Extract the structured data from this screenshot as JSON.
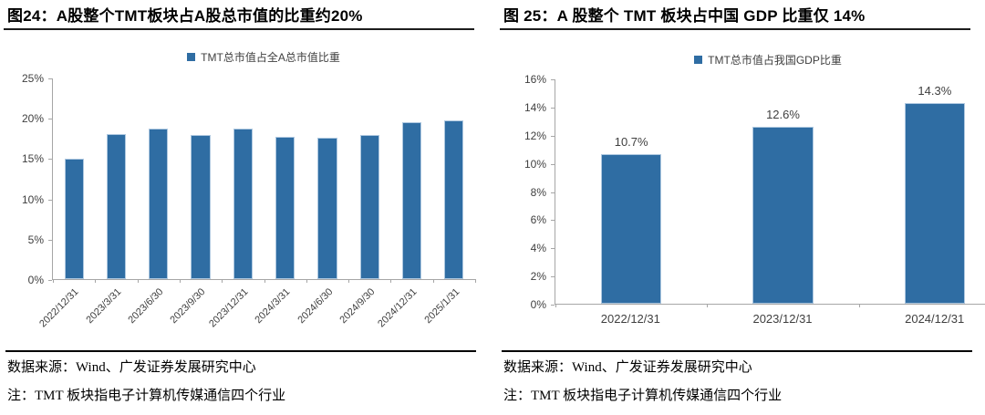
{
  "page": {
    "background": "#ffffff",
    "accent_blue": "#2F6DA3"
  },
  "panels": {
    "left": {
      "source": "数据来源：Wind、广发证券发展研究中心",
      "note": "注：TMT 板块指电子计算机传媒通信四个行业"
    },
    "right": {
      "source": "数据来源：Wind、广发证券发展研究中心",
      "note": "注：TMT 板块指电子计算机传媒通信四个行业"
    }
  },
  "chart_data": [
    {
      "type": "bar",
      "title": "图24：A股整个TMT板块占A股总市值的比重约20%",
      "legend": [
        "TMT总市值占全A总市值比重"
      ],
      "legend_position": "top",
      "categories": [
        "2022/12/31",
        "2023/3/31",
        "2023/6/30",
        "2023/9/30",
        "2023/12/31",
        "2024/3/31",
        "2024/6/30",
        "2024/9/30",
        "2024/12/31",
        "2025/1/31"
      ],
      "values": [
        15.0,
        18.1,
        18.8,
        18.0,
        18.7,
        17.7,
        17.6,
        17.9,
        19.6,
        19.8
      ],
      "unit": "%",
      "ylabel": "",
      "xlabel": "",
      "ylim": [
        0,
        25
      ],
      "ytick_step": 5,
      "ytick_labels": [
        "0%",
        "5%",
        "10%",
        "15%",
        "20%",
        "25%"
      ],
      "grid": false,
      "data_labels": null,
      "x_label_rotation": -45,
      "bar_color": "#2F6DA3"
    },
    {
      "type": "bar",
      "title": "图 25：A 股整个 TMT 板块占中国 GDP 比重仅 14%",
      "legend": [
        "TMT总市值占我国GDP比重"
      ],
      "legend_position": "top",
      "categories": [
        "2022/12/31",
        "2023/12/31",
        "2024/12/31"
      ],
      "values": [
        10.7,
        12.6,
        14.3
      ],
      "unit": "%",
      "ylabel": "",
      "xlabel": "",
      "ylim": [
        0,
        16
      ],
      "ytick_step": 2,
      "ytick_labels": [
        "0%",
        "2%",
        "4%",
        "6%",
        "8%",
        "10%",
        "12%",
        "14%",
        "16%"
      ],
      "grid": false,
      "data_labels": [
        "10.7%",
        "12.6%",
        "14.3%"
      ],
      "x_label_rotation": 0,
      "bar_color": "#2F6DA3"
    }
  ]
}
